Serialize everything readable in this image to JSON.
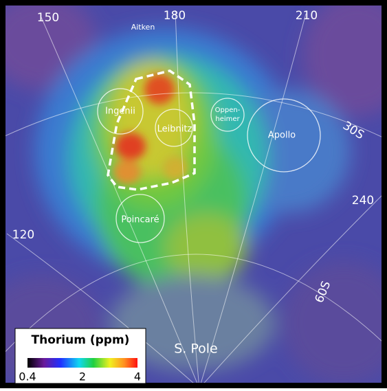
{
  "map": {
    "longitude_labels": [
      "150",
      "180",
      "210",
      "240",
      "120"
    ],
    "latitude_labels": [
      "30S",
      "60S"
    ],
    "features": {
      "aitken": "Aitken",
      "ingenii": "Ingenii",
      "leibnitz": "Leibnitz",
      "oppenheimer": [
        "Oppen-",
        "heimer"
      ],
      "apollo": "Apollo",
      "poincare": "Poincaré",
      "south_pole": "S. Pole"
    },
    "legend": {
      "title": "Thorium (ppm)",
      "ticks": [
        0.4,
        2,
        4
      ]
    }
  }
}
